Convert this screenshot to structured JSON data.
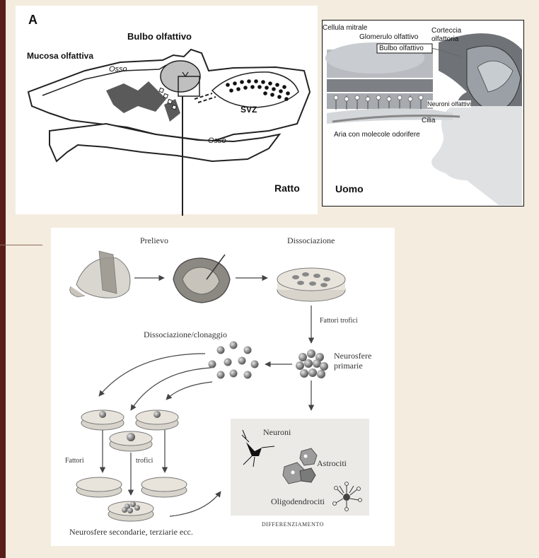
{
  "rat_panel": {
    "letter": "A",
    "olfactory_bulb": "Bulbo olfattivo",
    "olfactory_mucosa": "Mucosa olfattiva",
    "bone_top": "Osso",
    "bone_bottom": "Osso",
    "svz": "SVZ",
    "species": "Ratto"
  },
  "human_panel": {
    "mitral_cell": "Cellula mitrale",
    "glomerulus": "Glomerulo olfattivo",
    "bulb": "Bulbo olfattivo",
    "cortex_line1": "Corteccia",
    "cortex_line2": "olfattoria",
    "neurons": "Neuroni olfattivi",
    "cilia": "Cilia",
    "air": "Aria con molecole odorifere",
    "species": "Uomo"
  },
  "protocol": {
    "sampling": "Prelievo",
    "dissociation": "Dissociazione",
    "trophic_factors_right": "Fattori trofici",
    "dissociation_cloning": "Dissociazione/clonaggio",
    "primary_line1": "Neurosfere",
    "primary_line2": "primarie",
    "trophic_left_1": "Fattori",
    "trophic_left_2": "trofici",
    "neurons": "Neuroni",
    "astrocytes": "Astrociti",
    "oligodendrocytes": "Oligodendrociti",
    "differentiation": "DIFFERENZIAMENTO",
    "secondary": "Neurosfere secondarie, terziarie ecc."
  },
  "colors": {
    "page_background": "#f4ecdf",
    "left_bar": "#5a1e1a",
    "tissue_gray": "#5a5a5a",
    "dish_fill": "#e8e4dc"
  }
}
